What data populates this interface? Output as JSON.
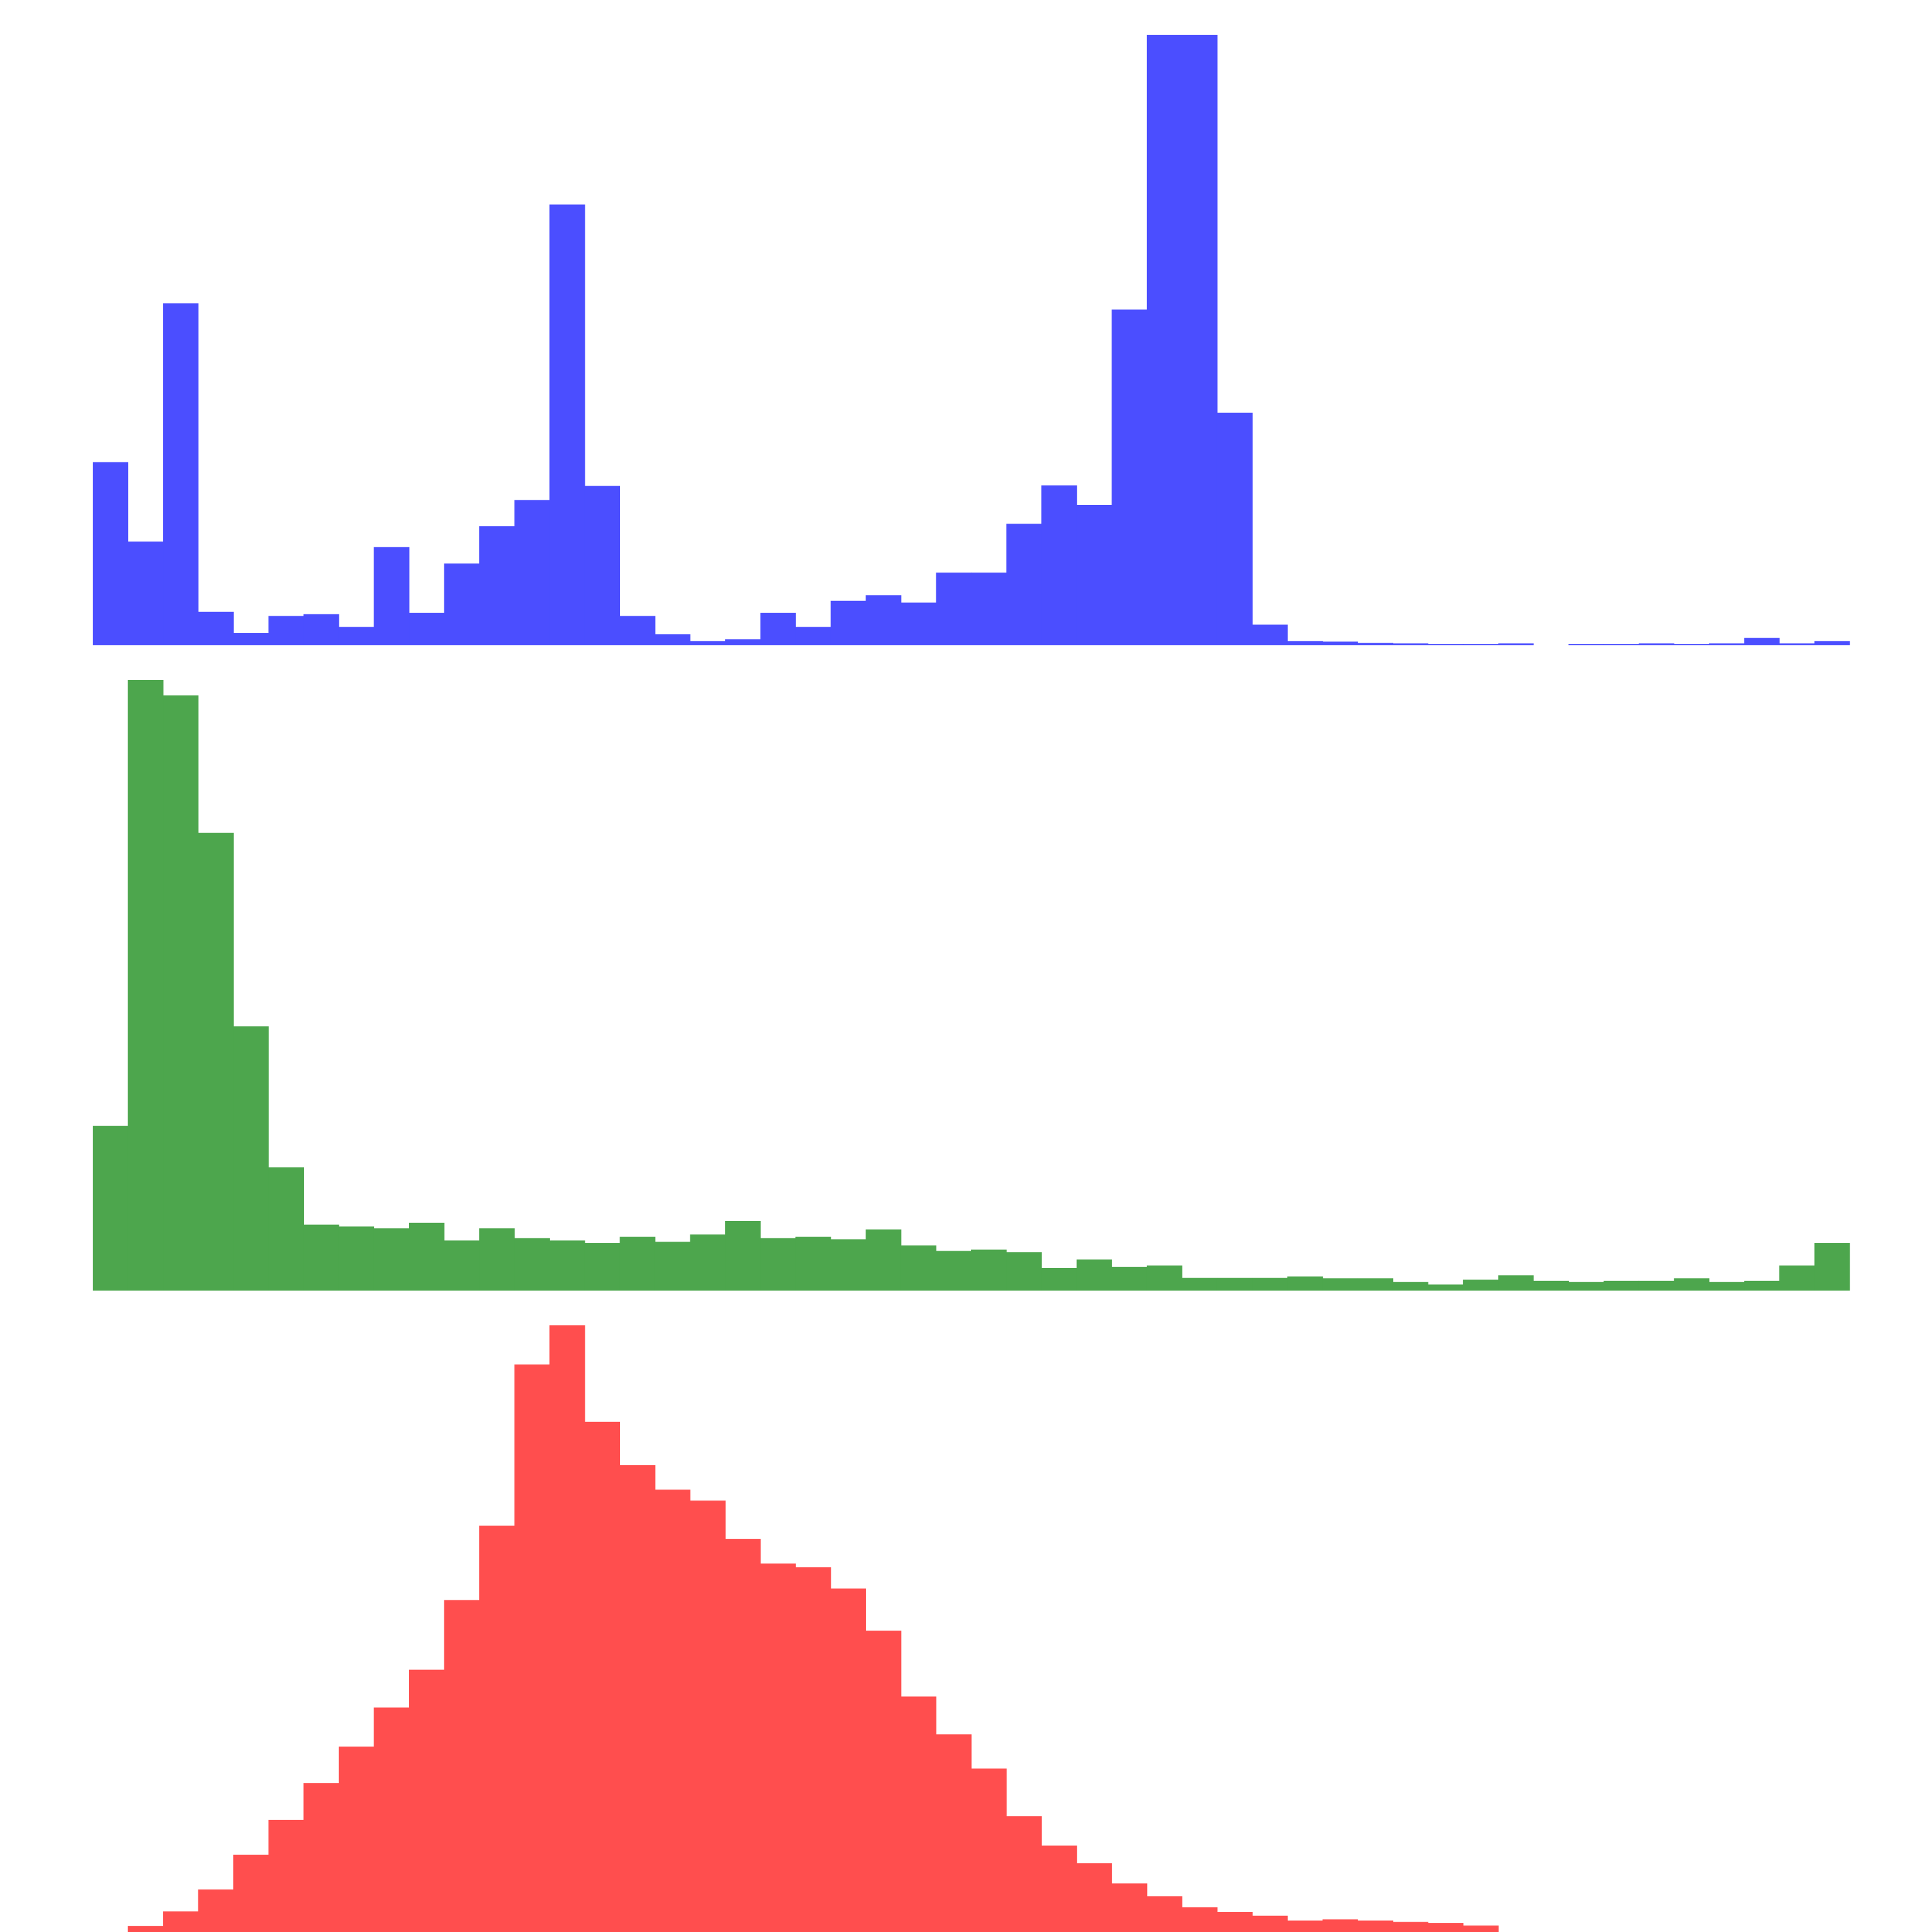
{
  "chart_data": [
    {
      "type": "bar",
      "panel": "top",
      "color": "#4b4eff",
      "bins": 50,
      "values": [
        30,
        17,
        56,
        5.5,
        2,
        4.8,
        5.1,
        3,
        16.1,
        5.3,
        13.4,
        19.5,
        23.8,
        72.2,
        26.1,
        4.8,
        1.8,
        0.7,
        1,
        5.3,
        3,
        7.3,
        8.2,
        7,
        11.9,
        11.9,
        19.9,
        26.2,
        23,
        55,
        100,
        100,
        38.1,
        3.4,
        0.7,
        0.6,
        0.4,
        0.3,
        0.2,
        0.2,
        0.3,
        0,
        0.2,
        0.2,
        0.3,
        0.2,
        0.3,
        1.2,
        0.3,
        0.7
      ],
      "ylim": [
        0,
        100
      ]
    },
    {
      "type": "bar",
      "panel": "middle",
      "color": "#4da64d",
      "bins": 50,
      "values": [
        27,
        100,
        97.5,
        75,
        43.3,
        20.2,
        10.8,
        10.5,
        10.2,
        11.1,
        8.2,
        10.2,
        8.6,
        8.2,
        7.8,
        8.8,
        8,
        9.2,
        11.4,
        8.6,
        8.8,
        8.4,
        10,
        7.4,
        6.5,
        6.7,
        6.3,
        3.7,
        5.1,
        3.9,
        4.1,
        2.1,
        2.1,
        2.1,
        2.3,
        2,
        2,
        1.4,
        1,
        1.8,
        2.5,
        1.6,
        1.4,
        1.6,
        1.6,
        2,
        1.4,
        1.6,
        4.1,
        7.8
      ],
      "ylim": [
        0,
        100
      ]
    },
    {
      "type": "bar",
      "panel": "bottom",
      "color": "#ff4e4e",
      "bins": 50,
      "values": [
        0.4,
        1.6,
        4,
        7.6,
        13.3,
        19,
        25,
        31,
        37.4,
        43.6,
        55,
        67.2,
        93.6,
        100,
        84.2,
        77.1,
        73.1,
        71.3,
        65,
        61,
        60.4,
        56.9,
        50,
        39.2,
        33,
        27.4,
        19.6,
        14.8,
        11.9,
        8.6,
        6.5,
        4.7,
        3.9,
        3.3,
        2.5,
        2.7,
        2.5,
        2.3,
        2.1,
        1.7,
        0.6,
        0.3,
        0.1,
        0.1,
        0,
        0,
        0,
        0,
        0,
        0.1
      ],
      "ylim": [
        0,
        100
      ]
    }
  ]
}
